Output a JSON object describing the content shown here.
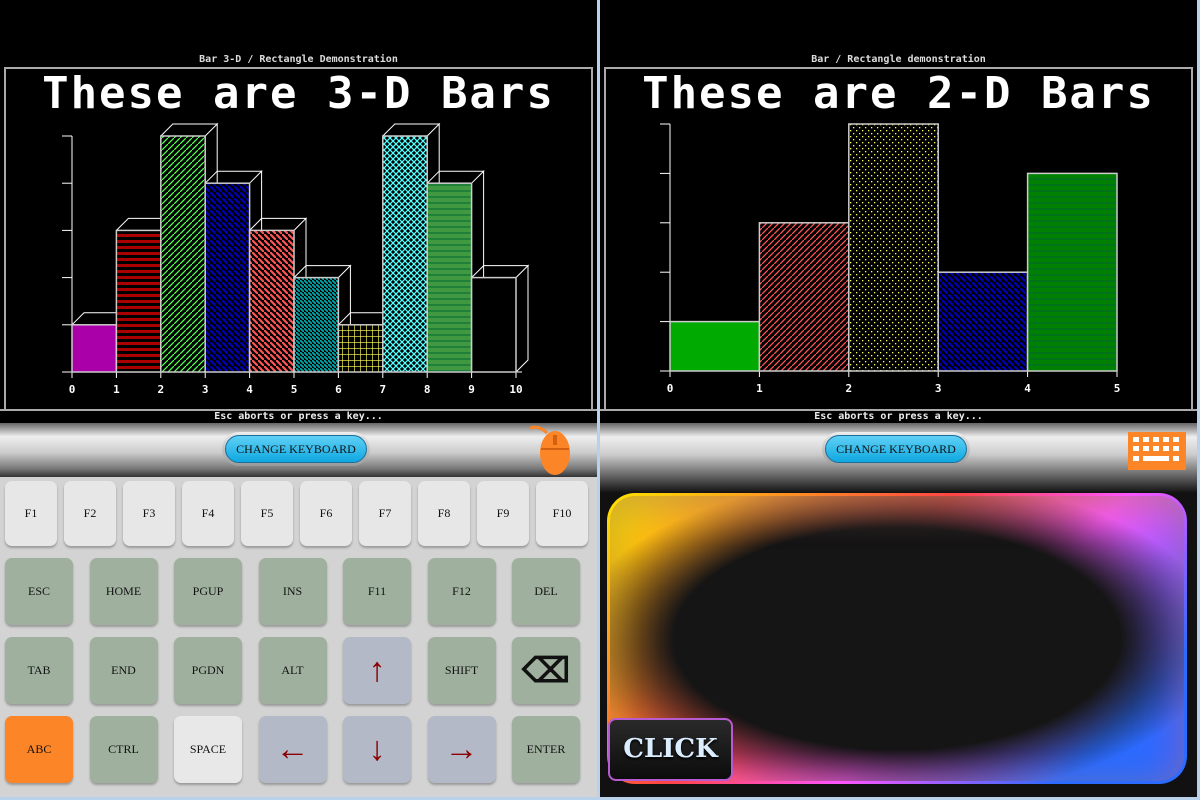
{
  "left": {
    "subtitle": "Bar 3-D / Rectangle Demonstration",
    "title": "These are 3-D Bars",
    "footer": "Esc aborts or press a key...",
    "change_keyboard": "CHANGE KEYBOARD",
    "mode_icon": "mouse-icon",
    "fkeys": [
      "F1",
      "F2",
      "F3",
      "F4",
      "F5",
      "F6",
      "F7",
      "F8",
      "F9",
      "F10"
    ],
    "rows": [
      [
        "ESC",
        "HOME",
        "PGUP",
        "INS",
        "F11",
        "F12",
        "DEL"
      ],
      [
        "TAB",
        "END",
        "PGDN",
        "ALT",
        "↑",
        "SHIFT",
        "⌫"
      ],
      [
        "ABC",
        "CTRL",
        "SPACE",
        "←",
        "↓",
        "→",
        "ENTER"
      ]
    ]
  },
  "right": {
    "subtitle": "Bar / Rectangle demonstration",
    "title": "These are 2-D Bars",
    "footer": "Esc aborts or press a key...",
    "change_keyboard": "CHANGE KEYBOARD",
    "mode_icon": "keyboard-icon",
    "click_label": "CLICK"
  },
  "chart_data": [
    {
      "type": "bar",
      "title": "These are 3-D Bars",
      "style": "3d",
      "x_ticks": [
        "0",
        "1",
        "2",
        "3",
        "4",
        "5",
        "6",
        "7",
        "8",
        "9",
        "10"
      ],
      "ylim": [
        0,
        5
      ],
      "y_ticks": [
        1,
        2,
        3,
        4,
        5
      ],
      "values": [
        1,
        3,
        5,
        4,
        3,
        2,
        1,
        5,
        4,
        2
      ],
      "colors": [
        "#aa00aa",
        "#aa0000",
        "#55ff55",
        "#0000aa",
        "#ff5555",
        "#00aaaa",
        "#ffff55",
        "#55ffff",
        "#55cc55",
        "#000000"
      ],
      "patterns": [
        "solid",
        "hlines",
        "slash",
        "backslash-thick",
        "backslash",
        "backslash-dense",
        "grid",
        "crosshatch",
        "hdense",
        "empty"
      ]
    },
    {
      "type": "bar",
      "title": "These are 2-D Bars",
      "style": "2d",
      "x_ticks": [
        "0",
        "1",
        "2",
        "3",
        "4",
        "5"
      ],
      "ylim": [
        0,
        5
      ],
      "y_ticks": [
        1,
        2,
        3,
        4,
        5
      ],
      "values": [
        1,
        3,
        5,
        2,
        4
      ],
      "colors": [
        "#00aa00",
        "#ff5555",
        "#ffff55",
        "#0000aa",
        "#00aa00"
      ],
      "patterns": [
        "solid",
        "slash",
        "dots",
        "backslash-thick",
        "hdense"
      ]
    }
  ]
}
